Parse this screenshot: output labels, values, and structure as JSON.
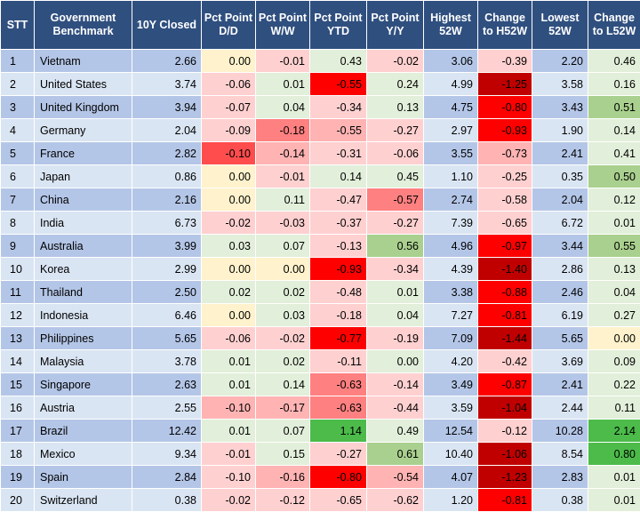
{
  "headers": {
    "stt": "STT",
    "benchmark": "Government Benchmark",
    "closed": "10Y Closed",
    "dd": "Pct Point D/D",
    "ww": "Pct Point W/W",
    "ytd": "Pct Point YTD",
    "yy": "Pct Point Y/Y",
    "h52": "Highest 52W",
    "ch52": "Change to H52W",
    "l52": "Lowest 52W",
    "cl52": "Change to L52W"
  },
  "rows": [
    {
      "stt": "1",
      "name": "Vietnam",
      "closed": "2.66",
      "dd": "0.00",
      "ww": "-0.01",
      "ytd": "0.43",
      "yy": "-0.02",
      "h52": "3.06",
      "ch52": "-0.39",
      "l52": "2.20",
      "cl52": "0.46"
    },
    {
      "stt": "2",
      "name": "United States",
      "closed": "3.74",
      "dd": "-0.06",
      "ww": "0.01",
      "ytd": "-0.55",
      "yy": "0.24",
      "h52": "4.99",
      "ch52": "-1.25",
      "l52": "3.58",
      "cl52": "0.16"
    },
    {
      "stt": "3",
      "name": "United Kingdom",
      "closed": "3.94",
      "dd": "-0.07",
      "ww": "0.04",
      "ytd": "-0.34",
      "yy": "0.13",
      "h52": "4.75",
      "ch52": "-0.80",
      "l52": "3.43",
      "cl52": "0.51"
    },
    {
      "stt": "4",
      "name": "Germany",
      "closed": "2.04",
      "dd": "-0.09",
      "ww": "-0.18",
      "ytd": "-0.55",
      "yy": "-0.27",
      "h52": "2.97",
      "ch52": "-0.93",
      "l52": "1.90",
      "cl52": "0.14"
    },
    {
      "stt": "5",
      "name": "France",
      "closed": "2.82",
      "dd": "-0.10",
      "ww": "-0.14",
      "ytd": "-0.31",
      "yy": "-0.06",
      "h52": "3.55",
      "ch52": "-0.73",
      "l52": "2.41",
      "cl52": "0.41"
    },
    {
      "stt": "6",
      "name": "Japan",
      "closed": "0.86",
      "dd": "0.00",
      "ww": "-0.01",
      "ytd": "0.14",
      "yy": "0.45",
      "h52": "1.10",
      "ch52": "-0.25",
      "l52": "0.35",
      "cl52": "0.50"
    },
    {
      "stt": "7",
      "name": "China",
      "closed": "2.16",
      "dd": "0.00",
      "ww": "0.11",
      "ytd": "-0.47",
      "yy": "-0.57",
      "h52": "2.74",
      "ch52": "-0.58",
      "l52": "2.04",
      "cl52": "0.12"
    },
    {
      "stt": "8",
      "name": "India",
      "closed": "6.73",
      "dd": "-0.02",
      "ww": "-0.03",
      "ytd": "-0.37",
      "yy": "-0.27",
      "h52": "7.39",
      "ch52": "-0.65",
      "l52": "6.72",
      "cl52": "0.01"
    },
    {
      "stt": "9",
      "name": "Australia",
      "closed": "3.99",
      "dd": "0.03",
      "ww": "0.07",
      "ytd": "-0.13",
      "yy": "0.56",
      "h52": "4.96",
      "ch52": "-0.97",
      "l52": "3.44",
      "cl52": "0.55"
    },
    {
      "stt": "10",
      "name": "Korea",
      "closed": "2.99",
      "dd": "0.00",
      "ww": "0.00",
      "ytd": "-0.93",
      "yy": "-0.34",
      "h52": "4.39",
      "ch52": "-1.40",
      "l52": "2.86",
      "cl52": "0.13"
    },
    {
      "stt": "11",
      "name": "Thailand",
      "closed": "2.50",
      "dd": "0.02",
      "ww": "0.02",
      "ytd": "-0.48",
      "yy": "0.01",
      "h52": "3.38",
      "ch52": "-0.88",
      "l52": "2.46",
      "cl52": "0.04"
    },
    {
      "stt": "12",
      "name": "Indonesia",
      "closed": "6.46",
      "dd": "0.00",
      "ww": "0.03",
      "ytd": "-0.18",
      "yy": "0.04",
      "h52": "7.27",
      "ch52": "-0.81",
      "l52": "6.19",
      "cl52": "0.27"
    },
    {
      "stt": "13",
      "name": "Philippines",
      "closed": "5.65",
      "dd": "-0.06",
      "ww": "-0.02",
      "ytd": "-0.77",
      "yy": "-0.19",
      "h52": "7.09",
      "ch52": "-1.44",
      "l52": "5.65",
      "cl52": "0.00"
    },
    {
      "stt": "14",
      "name": "Malaysia",
      "closed": "3.78",
      "dd": "0.01",
      "ww": "0.02",
      "ytd": "-0.11",
      "yy": "0.00",
      "h52": "4.20",
      "ch52": "-0.42",
      "l52": "3.69",
      "cl52": "0.09"
    },
    {
      "stt": "15",
      "name": "Singapore",
      "closed": "2.63",
      "dd": "0.01",
      "ww": "0.14",
      "ytd": "-0.63",
      "yy": "-0.14",
      "h52": "3.49",
      "ch52": "-0.87",
      "l52": "2.41",
      "cl52": "0.22"
    },
    {
      "stt": "16",
      "name": "Austria",
      "closed": "2.55",
      "dd": "-0.10",
      "ww": "-0.17",
      "ytd": "-0.63",
      "yy": "-0.44",
      "h52": "3.59",
      "ch52": "-1.04",
      "l52": "2.44",
      "cl52": "0.11"
    },
    {
      "stt": "17",
      "name": "Brazil",
      "closed": "12.42",
      "dd": "0.01",
      "ww": "0.07",
      "ytd": "1.14",
      "yy": "0.49",
      "h52": "12.54",
      "ch52": "-0.12",
      "l52": "10.28",
      "cl52": "2.14"
    },
    {
      "stt": "18",
      "name": "Mexico",
      "closed": "9.34",
      "dd": "-0.01",
      "ww": "0.15",
      "ytd": "-0.27",
      "yy": "0.61",
      "h52": "10.40",
      "ch52": "-1.06",
      "l52": "8.54",
      "cl52": "0.80"
    },
    {
      "stt": "19",
      "name": "Spain",
      "closed": "2.84",
      "dd": "-0.10",
      "ww": "-0.16",
      "ytd": "-0.80",
      "yy": "-0.54",
      "h52": "4.07",
      "ch52": "-1.23",
      "l52": "2.83",
      "cl52": "0.01"
    },
    {
      "stt": "20",
      "name": "Switzerland",
      "closed": "0.38",
      "dd": "-0.02",
      "ww": "-0.12",
      "ytd": "-0.65",
      "yy": "-0.62",
      "h52": "1.20",
      "ch52": "-0.81",
      "l52": "0.38",
      "cl52": "0.01"
    }
  ]
}
